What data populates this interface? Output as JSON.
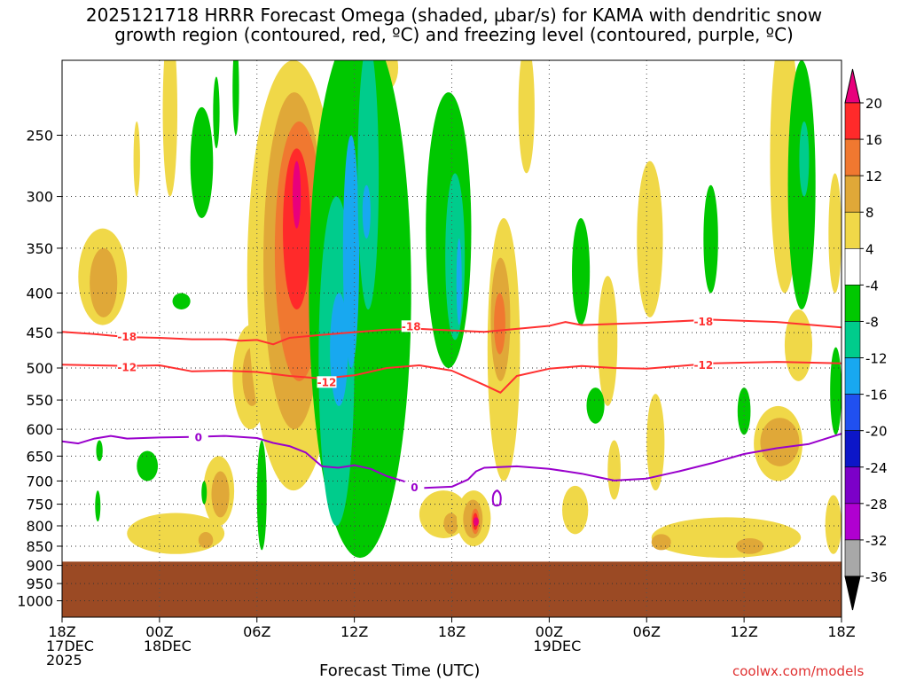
{
  "title_line1": "2025121718 HRRR Forecast Omega (shaded, μbar/s) for KAMA with dendritic snow",
  "title_line2": "growth region (contoured, red, ºC) and freezing level (contoured, purple, ºC)",
  "xlabel": "Forecast Time (UTC)",
  "credit": "coolwx.com/models",
  "chart_data": {
    "type": "heatmap",
    "title": "2025121718 HRRR Forecast Omega (shaded, μbar/s) for KAMA with dendritic snow growth region (contoured, red, ºC) and freezing level (contoured, purple, ºC)",
    "xlabel": "Forecast Time (UTC)",
    "ylabel": "",
    "x_hours_range": [
      0,
      48
    ],
    "y_pressure_range_hpa": [
      1050,
      200
    ],
    "y_scale": "log-pressure (inverted)",
    "grid": true,
    "x_ticks": [
      {
        "hour": 0,
        "lines": [
          "18Z",
          "17DEC",
          "2025"
        ]
      },
      {
        "hour": 6,
        "lines": [
          "00Z",
          "18DEC"
        ]
      },
      {
        "hour": 12,
        "lines": [
          "06Z"
        ]
      },
      {
        "hour": 18,
        "lines": [
          "12Z"
        ]
      },
      {
        "hour": 24,
        "lines": [
          "18Z"
        ]
      },
      {
        "hour": 30,
        "lines": [
          "00Z",
          "19DEC"
        ]
      },
      {
        "hour": 36,
        "lines": [
          "06Z"
        ]
      },
      {
        "hour": 42,
        "lines": [
          "12Z"
        ]
      },
      {
        "hour": 48,
        "lines": [
          "18Z"
        ]
      }
    ],
    "y_ticks": [
      250,
      300,
      350,
      400,
      450,
      500,
      550,
      600,
      650,
      700,
      750,
      800,
      850,
      900,
      950,
      1000
    ],
    "colorbar": {
      "labels": [
        "20",
        "16",
        "12",
        "8",
        "4",
        "-4",
        "-8",
        "-12",
        "-16",
        "-20",
        "-24",
        "-28",
        "-32",
        "-36"
      ],
      "colors": [
        "#e8007c",
        "#ff2a2a",
        "#f07830",
        "#e0a838",
        "#f0d848",
        "#ffffff",
        "#00c800",
        "#00cc8c",
        "#18a8f0",
        "#2050f0",
        "#0c16c8",
        "#7c00c8",
        "#b000d0",
        "#a8a8a8",
        "#000000"
      ]
    },
    "surface_pressure_hpa": 890,
    "surface_color": "#9b4a24",
    "contours": [
      {
        "name": "-18",
        "color": "#ff3030",
        "points": [
          [
            0,
            449
          ],
          [
            2,
            452
          ],
          [
            4,
            456
          ],
          [
            6,
            457
          ],
          [
            8,
            459
          ],
          [
            10,
            459
          ],
          [
            11,
            461
          ],
          [
            12,
            460
          ],
          [
            13,
            466
          ],
          [
            14,
            457
          ],
          [
            16,
            453
          ],
          [
            20,
            446
          ],
          [
            22,
            445
          ],
          [
            24,
            447
          ],
          [
            26,
            449
          ],
          [
            28,
            445
          ],
          [
            30,
            441
          ],
          [
            31,
            436
          ],
          [
            32,
            440
          ],
          [
            36,
            437
          ],
          [
            40,
            433
          ],
          [
            44,
            436
          ],
          [
            48,
            443
          ]
        ]
      },
      {
        "name": "-12",
        "color": "#ff3030",
        "points": [
          [
            0,
            495
          ],
          [
            2,
            496
          ],
          [
            4,
            497
          ],
          [
            6,
            496
          ],
          [
            8,
            505
          ],
          [
            10,
            504
          ],
          [
            12,
            506
          ],
          [
            14,
            512
          ],
          [
            16,
            516
          ],
          [
            18,
            511
          ],
          [
            20,
            500
          ],
          [
            22,
            496
          ],
          [
            24,
            504
          ],
          [
            26,
            526
          ],
          [
            27,
            538
          ],
          [
            28,
            512
          ],
          [
            30,
            501
          ],
          [
            32,
            497
          ],
          [
            34,
            500
          ],
          [
            36,
            501
          ],
          [
            40,
            493
          ],
          [
            44,
            491
          ],
          [
            48,
            493
          ]
        ]
      },
      {
        "name": "0",
        "color": "#9900cc",
        "points": [
          [
            0,
            622
          ],
          [
            1,
            626
          ],
          [
            2,
            617
          ],
          [
            3,
            612
          ],
          [
            4,
            617
          ],
          [
            6,
            615
          ],
          [
            8,
            614
          ],
          [
            10,
            612
          ],
          [
            12,
            616
          ],
          [
            13,
            625
          ],
          [
            14,
            631
          ],
          [
            15,
            643
          ],
          [
            16,
            670
          ],
          [
            17,
            673
          ],
          [
            18,
            668
          ],
          [
            19,
            675
          ],
          [
            20,
            690
          ],
          [
            21,
            700
          ],
          [
            22,
            715
          ],
          [
            24,
            712
          ],
          [
            25,
            697
          ],
          [
            25.5,
            680
          ],
          [
            26,
            673
          ],
          [
            28,
            670
          ],
          [
            30,
            675
          ],
          [
            32,
            685
          ],
          [
            34,
            699
          ],
          [
            36,
            695
          ],
          [
            38,
            680
          ],
          [
            40,
            664
          ],
          [
            42,
            646
          ],
          [
            44,
            635
          ],
          [
            46,
            627
          ],
          [
            48,
            608
          ]
        ]
      }
    ],
    "contour_labels": [
      {
        "text": "-18",
        "hour": 4,
        "p": 456
      },
      {
        "text": "-18",
        "hour": 21.5,
        "p": 442
      },
      {
        "text": "-18",
        "hour": 39.5,
        "p": 436
      },
      {
        "text": "-12",
        "hour": 4,
        "p": 499
      },
      {
        "text": "-12",
        "hour": 16.3,
        "p": 522
      },
      {
        "text": "-12",
        "hour": 39.5,
        "p": 496
      },
      {
        "text": "0",
        "hour": 8.4,
        "p": 615
      },
      {
        "text": "0",
        "hour": 21.7,
        "p": 714
      }
    ],
    "omega_features": [
      {
        "level": 4,
        "h0": 1,
        "h1": 4,
        "p0": 330,
        "p1": 440
      },
      {
        "level": 8,
        "h0": 1.7,
        "h1": 3.4,
        "p0": 350,
        "p1": 430
      },
      {
        "level": 4,
        "h0": 4.4,
        "h1": 4.8,
        "p0": 240,
        "p1": 300
      },
      {
        "level": 4,
        "h0": 6.2,
        "h1": 7.1,
        "p0": 180,
        "p1": 300
      },
      {
        "level": 4,
        "h0": 4,
        "h1": 10,
        "p0": 770,
        "p1": 870
      },
      {
        "level": 8,
        "h0": 8.4,
        "h1": 9.3,
        "p0": 815,
        "p1": 855
      },
      {
        "level": 4,
        "h0": 8.7,
        "h1": 10.6,
        "p0": 650,
        "p1": 800
      },
      {
        "level": 8,
        "h0": 9.2,
        "h1": 10.3,
        "p0": 680,
        "p1": 780
      },
      {
        "level": 4,
        "h0": 10.5,
        "h1": 12.7,
        "p0": 440,
        "p1": 600
      },
      {
        "level": 8,
        "h0": 11.1,
        "h1": 12.3,
        "p0": 470,
        "p1": 560
      },
      {
        "level": 4,
        "h0": 11.4,
        "h1": 17.1,
        "p0": 200,
        "p1": 720
      },
      {
        "level": 8,
        "h0": 12.4,
        "h1": 16.2,
        "p0": 220,
        "p1": 600
      },
      {
        "level": 12,
        "h0": 13.1,
        "h1": 16.1,
        "p0": 240,
        "p1": 520
      },
      {
        "level": 16,
        "h0": 13.6,
        "h1": 15.3,
        "p0": 260,
        "p1": 420
      },
      {
        "level": 20,
        "h0": 14.2,
        "h1": 14.7,
        "p0": 270,
        "p1": 330
      },
      {
        "level": 4,
        "h0": 18.9,
        "h1": 20.7,
        "p0": 190,
        "p1": 220
      },
      {
        "level": 4,
        "h0": 22,
        "h1": 25,
        "p0": 720,
        "p1": 830
      },
      {
        "level": 8,
        "h0": 23.5,
        "h1": 24.4,
        "p0": 770,
        "p1": 820
      },
      {
        "level": 4,
        "h0": 24.3,
        "h1": 26.4,
        "p0": 720,
        "p1": 850
      },
      {
        "level": 8,
        "h0": 24.7,
        "h1": 25.9,
        "p0": 740,
        "p1": 830
      },
      {
        "level": 12,
        "h0": 25.2,
        "h1": 25.7,
        "p0": 760,
        "p1": 820
      },
      {
        "level": 16,
        "h0": 25.3,
        "h1": 25.6,
        "p0": 770,
        "p1": 810
      },
      {
        "level": 20,
        "h0": 25.4,
        "h1": 25.6,
        "p0": 780,
        "p1": 800
      },
      {
        "level": 4,
        "h0": 26.2,
        "h1": 28.2,
        "p0": 320,
        "p1": 700
      },
      {
        "level": 8,
        "h0": 26.4,
        "h1": 27.6,
        "p0": 360,
        "p1": 520
      },
      {
        "level": 12,
        "h0": 26.6,
        "h1": 27.3,
        "p0": 400,
        "p1": 480
      },
      {
        "level": 4,
        "h0": 28.1,
        "h1": 29.1,
        "p0": 190,
        "p1": 280
      },
      {
        "level": 4,
        "h0": 30.8,
        "h1": 32.4,
        "p0": 710,
        "p1": 820
      },
      {
        "level": 4,
        "h0": 33,
        "h1": 34.2,
        "p0": 380,
        "p1": 560
      },
      {
        "level": 4,
        "h0": 33.6,
        "h1": 34.4,
        "p0": 620,
        "p1": 740
      },
      {
        "level": 4,
        "h0": 35.4,
        "h1": 37,
        "p0": 270,
        "p1": 430
      },
      {
        "level": 4,
        "h0": 36,
        "h1": 37.1,
        "p0": 540,
        "p1": 720
      },
      {
        "level": 4,
        "h0": 36.3,
        "h1": 45.5,
        "p0": 780,
        "p1": 880
      },
      {
        "level": 8,
        "h0": 36.3,
        "h1": 37.5,
        "p0": 820,
        "p1": 860
      },
      {
        "level": 8,
        "h0": 41.5,
        "h1": 43.2,
        "p0": 830,
        "p1": 870
      },
      {
        "level": 4,
        "h0": 42.6,
        "h1": 45.6,
        "p0": 560,
        "p1": 700
      },
      {
        "level": 8,
        "h0": 43,
        "h1": 45.4,
        "p0": 580,
        "p1": 670
      },
      {
        "level": 4,
        "h0": 43.6,
        "h1": 45.4,
        "p0": 180,
        "p1": 400
      },
      {
        "level": 4,
        "h0": 44.5,
        "h1": 46.2,
        "p0": 420,
        "p1": 520
      },
      {
        "level": 4,
        "h0": 47,
        "h1": 48,
        "p0": 730,
        "p1": 870
      },
      {
        "level": 4,
        "h0": 47.2,
        "h1": 48,
        "p0": 280,
        "p1": 400
      },
      {
        "level": -8,
        "h0": 6.8,
        "h1": 7.9,
        "p0": 400,
        "p1": 420
      },
      {
        "level": -8,
        "h0": 7.9,
        "h1": 9.3,
        "p0": 230,
        "p1": 320
      },
      {
        "level": -8,
        "h0": 4.6,
        "h1": 5.9,
        "p0": 640,
        "p1": 700
      },
      {
        "level": -8,
        "h0": 2.1,
        "h1": 2.5,
        "p0": 620,
        "p1": 660
      },
      {
        "level": -8,
        "h0": 2.1,
        "h1": 2.3,
        "p0": 720,
        "p1": 790
      },
      {
        "level": -8,
        "h0": 8.6,
        "h1": 8.9,
        "p0": 700,
        "p1": 750
      },
      {
        "level": -8,
        "h0": 9.3,
        "h1": 9.7,
        "p0": 210,
        "p1": 260
      },
      {
        "level": -8,
        "h0": 10.5,
        "h1": 10.9,
        "p0": 190,
        "p1": 250
      },
      {
        "level": -8,
        "h0": 12,
        "h1": 12.6,
        "p0": 620,
        "p1": 860
      },
      {
        "level": -8,
        "h0": 15.2,
        "h1": 21.5,
        "p0": 180,
        "p1": 880
      },
      {
        "level": -12,
        "h0": 15.8,
        "h1": 18,
        "p0": 300,
        "p1": 800
      },
      {
        "level": -16,
        "h0": 16.5,
        "h1": 17.6,
        "p0": 400,
        "p1": 560
      },
      {
        "level": -16,
        "h0": 17.3,
        "h1": 18.3,
        "p0": 250,
        "p1": 500
      },
      {
        "level": -12,
        "h0": 18.2,
        "h1": 19.5,
        "p0": 190,
        "p1": 420
      },
      {
        "level": -16,
        "h0": 18.5,
        "h1": 19,
        "p0": 290,
        "p1": 340
      },
      {
        "level": -8,
        "h0": 22.4,
        "h1": 25.2,
        "p0": 220,
        "p1": 500
      },
      {
        "level": -12,
        "h0": 23.6,
        "h1": 24.8,
        "p0": 280,
        "p1": 460
      },
      {
        "level": -16,
        "h0": 24.3,
        "h1": 24.6,
        "p0": 340,
        "p1": 440
      },
      {
        "level": -8,
        "h0": 31.4,
        "h1": 32.5,
        "p0": 320,
        "p1": 440
      },
      {
        "level": -8,
        "h0": 32.3,
        "h1": 33.4,
        "p0": 530,
        "p1": 590
      },
      {
        "level": -8,
        "h0": 39.5,
        "h1": 40.4,
        "p0": 290,
        "p1": 400
      },
      {
        "level": -8,
        "h0": 41.6,
        "h1": 42.4,
        "p0": 530,
        "p1": 610
      },
      {
        "level": -8,
        "h0": 44.7,
        "h1": 46.4,
        "p0": 200,
        "p1": 420
      },
      {
        "level": -12,
        "h0": 45.4,
        "h1": 46,
        "p0": 240,
        "p1": 300
      },
      {
        "level": -8,
        "h0": 47.3,
        "h1": 48,
        "p0": 470,
        "p1": 610
      }
    ]
  }
}
